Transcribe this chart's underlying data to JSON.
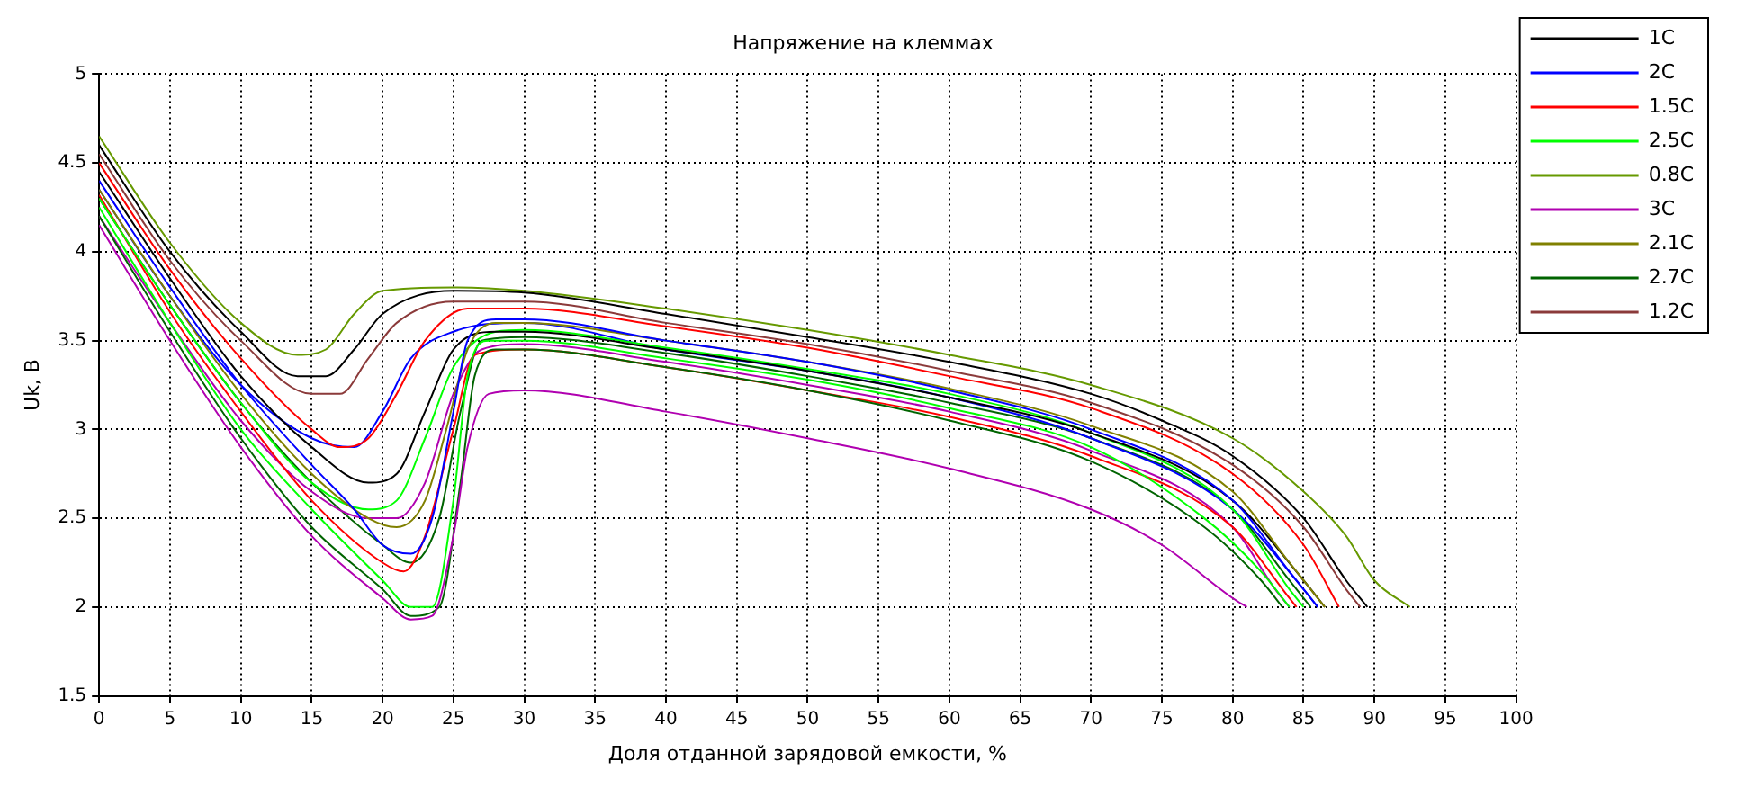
{
  "chart_data": {
    "type": "line",
    "title": "Напряжение на клеммах",
    "xlabel": "Доля отданной зарядовой емкости, %",
    "ylabel": "Uk, B",
    "xlim": [
      0,
      100
    ],
    "xticks": [
      0,
      5,
      10,
      15,
      20,
      25,
      30,
      35,
      40,
      45,
      50,
      55,
      60,
      65,
      70,
      75,
      80,
      85,
      90,
      95,
      100
    ],
    "ylim": [
      1.5,
      5
    ],
    "yticks": [
      1.5,
      2,
      2.5,
      3,
      3.5,
      4,
      4.5,
      5
    ],
    "grid": true,
    "legend": "top right",
    "marker": "none",
    "line_style": "solid",
    "series": [
      {
        "name": "1C",
        "color": "#000000",
        "x": [
          0,
          5,
          10,
          14,
          16,
          18,
          20,
          25,
          30,
          40,
          50,
          60,
          70,
          75,
          80,
          85,
          88,
          89.5
        ],
        "values": [
          4.6,
          4.0,
          3.55,
          3.3,
          3.3,
          3.45,
          3.65,
          3.78,
          3.77,
          3.65,
          3.52,
          3.38,
          3.2,
          3.05,
          2.85,
          2.5,
          2.15,
          2.0
        ]
      },
      {
        "name": "2C",
        "color": "#0000ff",
        "x": [
          0,
          5,
          10,
          15,
          18,
          20,
          22,
          23.5,
          25,
          26,
          28,
          30,
          40,
          50,
          60,
          70,
          80,
          84,
          86
        ],
        "values": [
          4.4,
          3.8,
          3.25,
          2.8,
          2.55,
          2.35,
          2.3,
          2.5,
          3.1,
          3.5,
          3.62,
          3.62,
          3.5,
          3.38,
          3.22,
          3.0,
          2.6,
          2.2,
          2.0
        ]
      },
      {
        "name": "1.5C",
        "color": "#ff0000",
        "x": [
          0,
          5,
          10,
          15,
          17,
          19,
          21,
          23,
          26,
          30,
          40,
          50,
          60,
          70,
          80,
          85,
          87.5
        ],
        "values": [
          4.5,
          3.9,
          3.4,
          3.0,
          2.9,
          2.95,
          3.2,
          3.5,
          3.68,
          3.68,
          3.58,
          3.46,
          3.3,
          3.12,
          2.75,
          2.35,
          2.0
        ]
      },
      {
        "name": "2.5C",
        "color": "#00ff00",
        "x": [
          0,
          5,
          10,
          15,
          20,
          22,
          23.5,
          25,
          26,
          27.5,
          30,
          40,
          50,
          60,
          70,
          78,
          82,
          84
        ],
        "values": [
          4.25,
          3.6,
          3.0,
          2.55,
          2.15,
          2.0,
          2.0,
          2.6,
          3.3,
          3.5,
          3.5,
          3.4,
          3.28,
          3.12,
          2.9,
          2.5,
          2.2,
          2.0
        ]
      },
      {
        "name": "0.8C",
        "color": "#669900",
        "x": [
          0,
          5,
          10,
          14,
          16,
          18,
          20,
          25,
          30,
          40,
          50,
          60,
          70,
          80,
          85,
          88,
          90,
          92.5
        ],
        "values": [
          4.65,
          4.05,
          3.6,
          3.42,
          3.45,
          3.65,
          3.78,
          3.8,
          3.78,
          3.68,
          3.56,
          3.42,
          3.25,
          2.95,
          2.65,
          2.4,
          2.15,
          2.0
        ]
      },
      {
        "name": "3C",
        "color": "#b000b0",
        "x": [
          0,
          5,
          10,
          15,
          20,
          22,
          23.5,
          25,
          26,
          27.5,
          30,
          40,
          50,
          60,
          70,
          75,
          80,
          81
        ],
        "values": [
          4.15,
          3.5,
          2.9,
          2.4,
          2.05,
          1.93,
          1.95,
          2.4,
          2.9,
          3.2,
          3.22,
          3.1,
          2.95,
          2.78,
          2.55,
          2.35,
          2.05,
          2.0
        ]
      },
      {
        "name": "2.1C",
        "color": "#808000",
        "x": [
          0,
          5,
          10,
          15,
          19,
          21,
          23,
          24.5,
          26,
          28,
          30,
          40,
          50,
          60,
          70,
          80,
          84,
          86.5
        ],
        "values": [
          4.35,
          3.75,
          3.2,
          2.75,
          2.5,
          2.45,
          2.6,
          3.0,
          3.45,
          3.6,
          3.6,
          3.5,
          3.38,
          3.23,
          3.02,
          2.65,
          2.25,
          2.0
        ]
      },
      {
        "name": "2.7C",
        "color": "#006400",
        "x": [
          0,
          5,
          10,
          15,
          20,
          22,
          24,
          25.5,
          26.5,
          28,
          30,
          40,
          50,
          60,
          70,
          78,
          82,
          83.5
        ],
        "values": [
          4.2,
          3.55,
          2.95,
          2.45,
          2.1,
          1.95,
          2.0,
          2.7,
          3.3,
          3.45,
          3.45,
          3.35,
          3.22,
          3.05,
          2.82,
          2.45,
          2.15,
          2.0
        ]
      },
      {
        "name": "1.2C",
        "color": "#8b3a3a",
        "x": [
          0,
          5,
          10,
          15,
          17,
          19,
          21,
          25,
          30,
          40,
          50,
          60,
          70,
          80,
          85,
          88,
          89
        ],
        "values": [
          4.55,
          3.95,
          3.5,
          3.2,
          3.2,
          3.4,
          3.6,
          3.72,
          3.72,
          3.6,
          3.48,
          3.33,
          3.15,
          2.8,
          2.45,
          2.1,
          2.0
        ]
      },
      {
        "color": "#000000",
        "x": [
          0,
          5,
          10,
          15,
          19,
          21,
          23,
          25,
          28,
          30,
          40,
          50,
          60,
          70,
          80,
          85,
          86.5
        ],
        "values": [
          4.45,
          3.85,
          3.3,
          2.9,
          2.7,
          2.75,
          3.1,
          3.45,
          3.55,
          3.55,
          3.45,
          3.33,
          3.18,
          2.98,
          2.6,
          2.15,
          2.0
        ]
      },
      {
        "color": "#00ff00",
        "x": [
          0,
          5,
          10,
          15,
          19,
          21,
          23,
          25,
          28,
          30,
          40,
          50,
          60,
          70,
          80,
          84,
          85
        ],
        "values": [
          4.3,
          3.7,
          3.15,
          2.7,
          2.55,
          2.6,
          2.95,
          3.35,
          3.55,
          3.56,
          3.46,
          3.34,
          3.2,
          2.98,
          2.55,
          2.1,
          2.0
        ]
      },
      {
        "color": "#ff0000",
        "x": [
          0,
          5,
          10,
          15,
          20,
          21.5,
          23,
          25,
          26.5,
          30,
          40,
          50,
          60,
          70,
          80,
          84,
          84.5
        ],
        "values": [
          4.32,
          3.66,
          3.1,
          2.6,
          2.25,
          2.2,
          2.4,
          3.0,
          3.42,
          3.45,
          3.35,
          3.22,
          3.07,
          2.85,
          2.45,
          2.05,
          2.0
        ]
      },
      {
        "color": "#0000ff",
        "x": [
          0,
          5,
          10,
          15,
          18,
          20,
          22,
          25,
          30,
          40,
          50,
          60,
          70,
          80,
          85,
          86
        ],
        "values": [
          4.35,
          3.75,
          3.25,
          2.95,
          2.9,
          3.1,
          3.4,
          3.55,
          3.6,
          3.45,
          3.33,
          3.18,
          2.95,
          2.55,
          2.1,
          2.0
        ]
      },
      {
        "color": "#b000b0",
        "x": [
          0,
          5,
          10,
          15,
          19,
          21,
          23,
          25,
          27,
          30,
          40,
          50,
          60,
          70,
          80,
          83,
          84
        ],
        "values": [
          4.2,
          3.6,
          3.05,
          2.65,
          2.5,
          2.5,
          2.7,
          3.2,
          3.45,
          3.48,
          3.38,
          3.25,
          3.1,
          2.88,
          2.45,
          2.1,
          2.0
        ]
      },
      {
        "color": "#006400",
        "x": [
          0,
          5,
          10,
          15,
          20,
          22,
          24,
          25.5,
          27,
          30,
          40,
          50,
          60,
          70,
          80,
          84,
          85.5
        ],
        "values": [
          4.3,
          3.7,
          3.15,
          2.7,
          2.35,
          2.25,
          2.5,
          3.1,
          3.5,
          3.52,
          3.43,
          3.3,
          3.15,
          2.95,
          2.55,
          2.15,
          2.0
        ]
      }
    ]
  }
}
